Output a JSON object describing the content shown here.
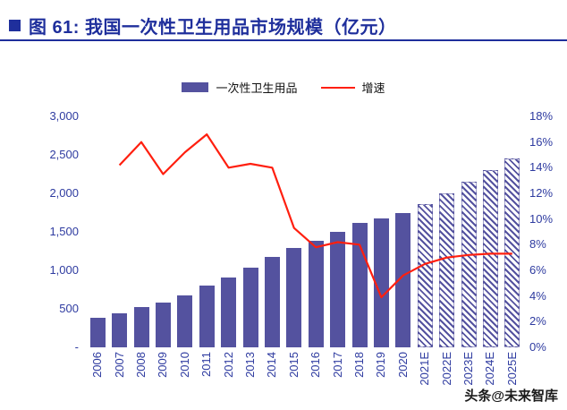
{
  "header": {
    "title": "图 61:  我国一次性卫生用品市场规模（亿元）"
  },
  "legend": {
    "bar_label": "一次性卫生用品",
    "line_label": "增速"
  },
  "watermark": "头条@未来智库",
  "colors": {
    "bar": "#54529F",
    "line": "#FF1F0F",
    "axis_text": "#2E3BA0",
    "title": "#1F2F9C"
  },
  "chart_data": {
    "type": "bar",
    "subtype": "bar+line combo, dual axis",
    "title": "我国一次性卫生用品市场规模（亿元）",
    "categories": [
      "2006",
      "2007",
      "2008",
      "2009",
      "2010",
      "2011",
      "2012",
      "2013",
      "2014",
      "2015",
      "2016",
      "2017",
      "2018",
      "2019",
      "2020",
      "2021E",
      "2022E",
      "2023E",
      "2024E",
      "2025E"
    ],
    "series": [
      {
        "name": "一次性卫生用品",
        "type": "bar",
        "axis": "left",
        "unit": "亿元",
        "values": [
          390,
          440,
          520,
          580,
          680,
          800,
          910,
          1030,
          1180,
          1290,
          1390,
          1500,
          1620,
          1680,
          1750,
          1860,
          2000,
          2150,
          2300,
          2450
        ],
        "forecast_start_index": 15,
        "forecast_style": "hatched"
      },
      {
        "name": "增速",
        "type": "line",
        "axis": "right",
        "unit": "%",
        "values": [
          null,
          14.2,
          16.0,
          13.5,
          15.2,
          16.6,
          14.0,
          14.3,
          14.0,
          9.3,
          7.8,
          8.2,
          8.0,
          3.9,
          5.6,
          6.5,
          7.0,
          7.2,
          7.3,
          7.3
        ]
      }
    ],
    "left_axis": {
      "min": 0,
      "max": 3000,
      "step": 500,
      "tick_labels": [
        "-",
        "500",
        "1,000",
        "1,500",
        "2,000",
        "2,500",
        "3,000"
      ]
    },
    "right_axis": {
      "min": 0,
      "max": 18,
      "step": 2,
      "tick_labels": [
        "0%",
        "2%",
        "4%",
        "6%",
        "8%",
        "10%",
        "12%",
        "14%",
        "16%",
        "18%"
      ]
    },
    "grid": false,
    "legend_position": "top-center"
  }
}
